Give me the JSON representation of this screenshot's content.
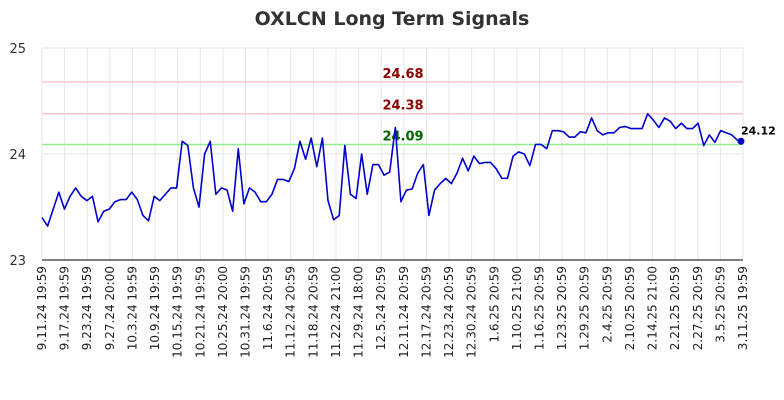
{
  "chart_data": {
    "type": "line",
    "title": "OXLCN Long Term Signals",
    "xlabel": "",
    "ylabel": "",
    "ylim": [
      23,
      25
    ],
    "yticks": [
      "23",
      "24",
      "25"
    ],
    "grid": true,
    "x_tick_labels": [
      "9.11.24 19:59",
      "9.17.24 19:59",
      "9.23.24 19:59",
      "9.27.24 20:00",
      "10.3.24 19:59",
      "10.9.24 19:59",
      "10.15.24 19:59",
      "10.21.24 19:59",
      "10.25.24 20:00",
      "10.31.24 19:59",
      "11.6.24 20:59",
      "11.12.24 20:59",
      "11.18.24 20:59",
      "11.22.24 21:00",
      "11.29.24 18:00",
      "12.5.24 20:59",
      "12.11.24 20:59",
      "12.17.24 20:59",
      "12.23.24 20:59",
      "12.30.24 20:59",
      "1.6.25 20:59",
      "1.10.25 21:00",
      "1.16.25 20:59",
      "1.23.25 20:59",
      "1.29.25 20:59",
      "2.4.25 20:59",
      "2.10.25 20:59",
      "2.14.25 21:00",
      "2.21.25 20:59",
      "2.27.25 20:59",
      "3.5.25 20:59",
      "3.11.25 19:59"
    ],
    "horizontal_lines": [
      {
        "value": 24.68,
        "label": "24.68",
        "color": "#ffcccc",
        "label_color": "#8b0000"
      },
      {
        "value": 24.38,
        "label": "24.38",
        "color": "#ffcccc",
        "label_color": "#8b0000"
      },
      {
        "value": 24.09,
        "label": "24.09",
        "color": "#90ee90",
        "label_color": "#006400"
      }
    ],
    "line_color": "#0000cc",
    "last_value_label": "24.12",
    "series": [
      {
        "values": [
          23.4,
          23.32,
          23.48,
          23.64,
          23.48,
          23.6,
          23.68,
          23.6,
          23.56,
          23.6,
          23.36,
          23.46,
          23.48,
          23.55,
          23.57,
          23.57,
          23.64,
          23.57,
          23.42,
          23.37,
          23.6,
          23.56,
          23.62,
          23.68,
          23.68,
          24.12,
          24.08,
          23.68,
          23.5,
          24.0,
          24.12,
          23.62,
          23.68,
          23.66,
          23.46,
          24.05,
          23.53,
          23.68,
          23.64,
          23.55,
          23.55,
          23.62,
          23.76,
          23.76,
          23.74,
          23.86,
          24.12,
          23.95,
          24.15,
          23.88,
          24.15,
          23.56,
          23.38,
          23.42,
          24.08,
          23.62,
          23.58,
          24.0,
          23.62,
          23.9,
          23.9,
          23.8,
          23.83,
          24.25,
          23.55,
          23.66,
          23.67,
          23.82,
          23.9,
          23.42,
          23.66,
          23.72,
          23.77,
          23.72,
          23.82,
          23.96,
          23.84,
          23.98,
          23.91,
          23.92,
          23.92,
          23.86,
          23.77,
          23.77,
          23.98,
          24.02,
          24.0,
          23.89,
          24.09,
          24.09,
          24.05,
          24.22,
          24.22,
          24.21,
          24.16,
          24.16,
          24.21,
          24.2,
          24.34,
          24.22,
          24.18,
          24.2,
          24.2,
          24.25,
          24.26,
          24.24,
          24.24,
          24.24,
          24.38,
          24.32,
          24.25,
          24.34,
          24.31,
          24.24,
          24.29,
          24.24,
          24.24,
          24.29,
          24.08,
          24.18,
          24.11,
          24.22,
          24.2,
          24.18,
          24.13,
          24.12
        ]
      }
    ]
  }
}
